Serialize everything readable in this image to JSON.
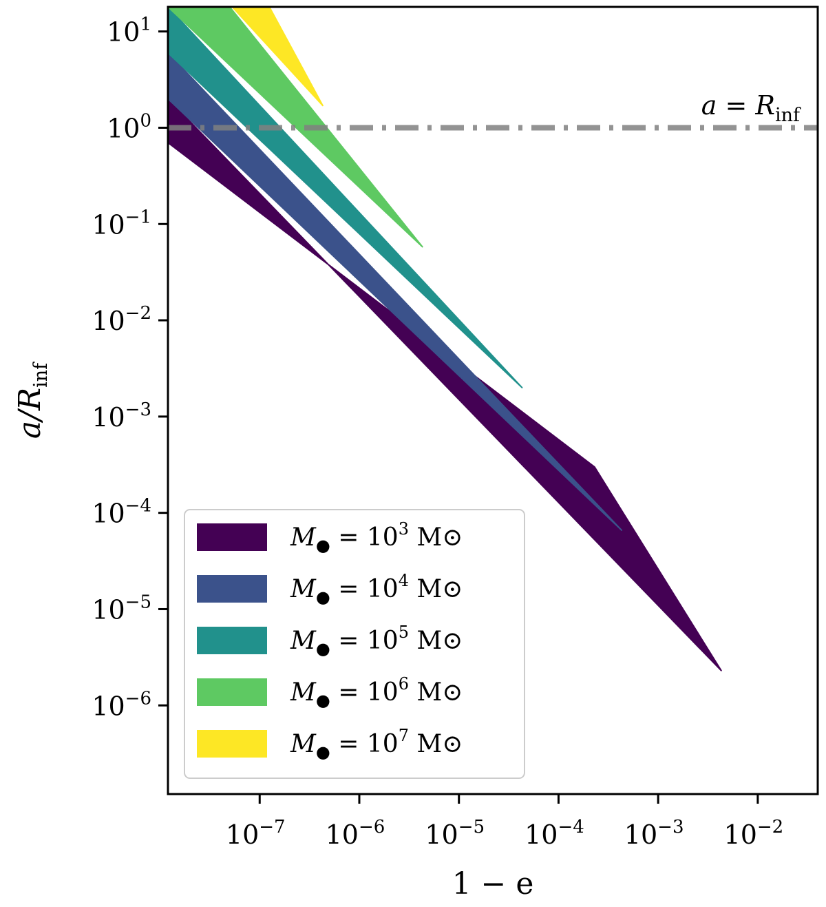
{
  "chart_data": {
    "type": "area",
    "title": "",
    "xlabel": "1 − e",
    "ylabel": "a/R_inf",
    "xscale": "log",
    "yscale": "log",
    "xlim": [
      1.2e-08,
      0.04
    ],
    "ylim": [
      1.2e-07,
      18
    ],
    "x_ticks": [
      {
        "base": "10",
        "exp": "−7",
        "value": 1e-07
      },
      {
        "base": "10",
        "exp": "−6",
        "value": 1e-06
      },
      {
        "base": "10",
        "exp": "−5",
        "value": 1e-05
      },
      {
        "base": "10",
        "exp": "−4",
        "value": 0.0001
      },
      {
        "base": "10",
        "exp": "−3",
        "value": 0.001
      },
      {
        "base": "10",
        "exp": "−2",
        "value": 0.01
      }
    ],
    "y_ticks": [
      {
        "base": "10",
        "exp": "1",
        "value": 10
      },
      {
        "base": "10",
        "exp": "0",
        "value": 1
      },
      {
        "base": "10",
        "exp": "−1",
        "value": 0.1
      },
      {
        "base": "10",
        "exp": "−2",
        "value": 0.01
      },
      {
        "base": "10",
        "exp": "−3",
        "value": 0.001
      },
      {
        "base": "10",
        "exp": "−4",
        "value": 0.0001
      },
      {
        "base": "10",
        "exp": "−5",
        "value": 1e-05
      },
      {
        "base": "10",
        "exp": "−6",
        "value": 1e-06
      }
    ],
    "reference_line": {
      "y": 1,
      "style": "dash-dot",
      "color": "#808080",
      "label": {
        "main": "a = R",
        "sub": "inf"
      }
    },
    "legend_position": "lower-left",
    "series": [
      {
        "name": "M● = 10³ M⊙",
        "label_prefix": "M",
        "label_sub": "●",
        "label_mid": " = 10",
        "label_exp": "3",
        "label_suffix": " M⊙",
        "color": "#440154",
        "upper": [
          [
            1.2e-08,
            2.0
          ],
          [
            0.0043,
            2.3e-06
          ]
        ],
        "lower": [
          [
            1.2e-08,
            0.7
          ],
          [
            0.00023,
            0.0003
          ],
          [
            0.0043,
            2.3e-06
          ]
        ]
      },
      {
        "name": "M● = 10⁴ M⊙",
        "label_prefix": "M",
        "label_sub": "●",
        "label_mid": " = 10",
        "label_exp": "4",
        "label_suffix": " M⊙",
        "color": "#3b528b",
        "upper": [
          [
            1.2e-08,
            6.0
          ],
          [
            0.00043,
            6.6e-05
          ]
        ],
        "lower": [
          [
            1.2e-08,
            2.0
          ],
          [
            0.00043,
            6.6e-05
          ]
        ]
      },
      {
        "name": "M● = 10⁵ M⊙",
        "label_prefix": "M",
        "label_sub": "●",
        "label_mid": " = 10",
        "label_exp": "5",
        "label_suffix": " M⊙",
        "color": "#21918c",
        "upper": [
          [
            1.2e-08,
            18
          ],
          [
            4.3e-05,
            0.002
          ]
        ],
        "lower": [
          [
            1.2e-08,
            6.0
          ],
          [
            4.3e-05,
            0.002
          ]
        ]
      },
      {
        "name": "M● = 10⁶ M⊙",
        "label_prefix": "M",
        "label_sub": "●",
        "label_mid": " = 10",
        "label_exp": "6",
        "label_suffix": " M⊙",
        "color": "#5ec962",
        "upper": [
          [
            5e-08,
            18
          ],
          [
            4.3e-06,
            0.058
          ]
        ],
        "lower": [
          [
            1.2e-08,
            18
          ],
          [
            4.3e-06,
            0.058
          ]
        ]
      },
      {
        "name": "M● = 10⁷ M⊙",
        "label_prefix": "M",
        "label_sub": "●",
        "label_mid": " = 10",
        "label_exp": "7",
        "label_suffix": " M⊙",
        "color": "#fde725",
        "upper": [
          [
            1.25e-07,
            18
          ],
          [
            4.3e-07,
            1.7
          ]
        ],
        "lower": [
          [
            5.3e-08,
            18
          ],
          [
            4.3e-07,
            1.7
          ]
        ]
      }
    ]
  }
}
